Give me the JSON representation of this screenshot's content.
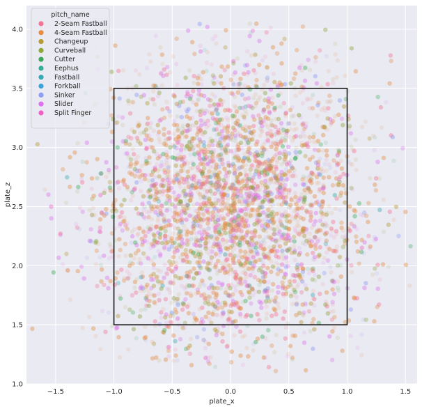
{
  "chart_data": {
    "type": "scatter",
    "xlabel": "plate_x",
    "ylabel": "plate_z",
    "xlim": [
      -1.75,
      1.6
    ],
    "ylim": [
      1.0,
      4.2
    ],
    "x_ticks": [
      -1.5,
      -1.0,
      -0.5,
      0.0,
      0.5,
      1.0,
      1.5
    ],
    "x_tick_labels": [
      "−1.5",
      "−1.0",
      "−0.5",
      "0.0",
      "0.5",
      "1.0",
      "1.5"
    ],
    "y_ticks": [
      1.0,
      1.5,
      2.0,
      2.5,
      3.0,
      3.5,
      4.0
    ],
    "y_tick_labels": [
      "1.0",
      "1.5",
      "2.0",
      "2.5",
      "3.0",
      "3.5",
      "4.0"
    ],
    "grid": true,
    "point_alpha": 0.12,
    "legend": {
      "title": "pitch_name",
      "placement": "top-left"
    },
    "series": [
      {
        "name": "2-Seam Fastball",
        "color": "#f37596",
        "weight": 0.15
      },
      {
        "name": "4-Seam Fastball",
        "color": "#e88c43",
        "weight": 0.34
      },
      {
        "name": "Changeup",
        "color": "#b59b33",
        "weight": 0.1
      },
      {
        "name": "Curveball",
        "color": "#8fa83a",
        "weight": 0.08
      },
      {
        "name": "Cutter",
        "color": "#3ba957",
        "weight": 0.05
      },
      {
        "name": "Eephus",
        "color": "#35ab98",
        "weight": 0.003
      },
      {
        "name": "Fastball",
        "color": "#37a9b2",
        "weight": 0.01
      },
      {
        "name": "Forkball",
        "color": "#3ba4d8",
        "weight": 0.003
      },
      {
        "name": "Sinker",
        "color": "#8d9ff4",
        "weight": 0.07
      },
      {
        "name": "Slider",
        "color": "#dc71eb",
        "weight": 0.16
      },
      {
        "name": "Split Finger",
        "color": "#f060c4",
        "weight": 0.02
      }
    ],
    "distribution": {
      "x_center": 0.0,
      "x_spread": 0.55,
      "x_range": [
        -1.7,
        1.55
      ],
      "z_center": 2.5,
      "z_spread": 0.6,
      "z_range": [
        1.1,
        4.05
      ],
      "approx_points": 9000
    },
    "strike_zone": {
      "x_min": -1.0,
      "x_max": 1.0,
      "z_min": 1.5,
      "z_max": 3.5
    }
  }
}
